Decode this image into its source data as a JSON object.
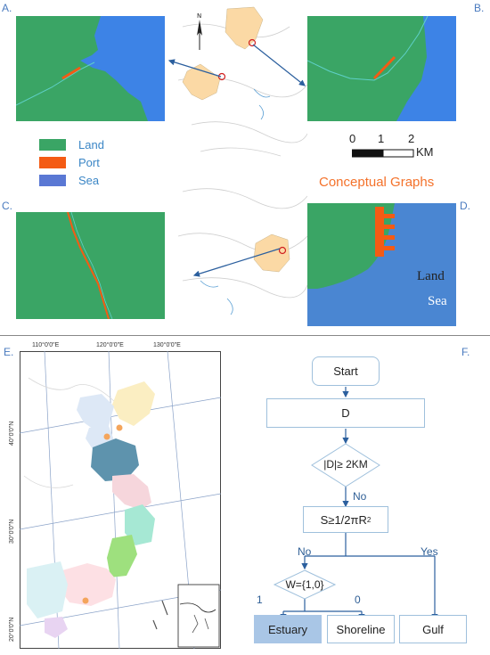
{
  "panels": {
    "a": "A.",
    "b": "B.",
    "c": "C.",
    "d": "D.",
    "e": "E.",
    "f": "F."
  },
  "legend": {
    "land": "Land",
    "port": "Port",
    "sea": "Sea"
  },
  "scalebar": {
    "t0": "0",
    "t1": "1",
    "t2": "2",
    "unit": "KM"
  },
  "conceptual": {
    "title": "Conceptual Graphs",
    "land": "Land",
    "sea": "Sea"
  },
  "map_e": {
    "lon": [
      "110°0'0\"E",
      "120°0'0\"E",
      "130°0'0\"E"
    ],
    "lat": [
      "40°0'0\"N",
      "30°0'0\"N",
      "20°0'0\"N"
    ]
  },
  "flowchart": {
    "start": "Start",
    "d": "D",
    "cond1": "|D|≥ 2KM",
    "no1": "No",
    "cond2_base": "S≥1/2πR",
    "cond2_sup": "2",
    "no2": "No",
    "yes2": "Yes",
    "cond3": "W={1,0}",
    "one": "1",
    "zero": "0",
    "estuary": "Estuary",
    "shoreline": "Shoreline",
    "gulf": "Gulf"
  },
  "colors": {
    "land": "#3aa565",
    "port": "#f45b14",
    "sea": "#3d83e6",
    "legend_sea": "#5a78d4",
    "concept_land": "#3aa565",
    "concept_sea": "#4a86d2",
    "estuary_fill": "#a9c6e6"
  },
  "icons": [
    "north-arrow-icon"
  ]
}
